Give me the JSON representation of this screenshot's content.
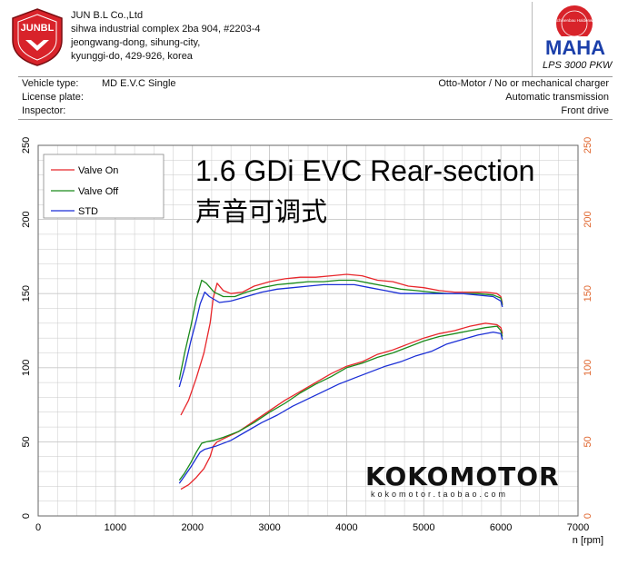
{
  "company": {
    "brand": "JUNBL",
    "name": "JUN B.L Co.,Ltd",
    "address": [
      "sihwa industrial complex 2ba 904, #2203-4",
      "jeongwang-dong, sihung-city,",
      "kyunggi-do, 429-926, korea"
    ]
  },
  "maha": {
    "seal_text": "Maschinenbau Haldenwang",
    "brand": "MAHA",
    "model": "LPS 3000 PKW"
  },
  "info": {
    "vehicle_type_label": "Vehicle type:",
    "vehicle_type_value": "MD E.V.C Single",
    "license_label": "License plate:",
    "inspector_label": "Inspector:",
    "right": [
      "Otto-Motor / No or mechanical charger",
      "Automatic transmission",
      "Front drive"
    ]
  },
  "watermark": {
    "logo": "KOKOMOTOR",
    "url": "kokomotor.taobao.com"
  },
  "colors": {
    "valve_on": "#e8262b",
    "valve_off": "#1a8a1a",
    "std": "#1b2fd6",
    "right_axis": "#e0662e",
    "grid": "#c8c8c8"
  },
  "chart_data": {
    "type": "line",
    "title": "1.6 GDi EVC Rear-section",
    "subtitle": "声音可调式",
    "xlabel": "n [rpm]",
    "xlim": [
      0,
      7000
    ],
    "ylim": [
      0,
      250
    ],
    "y2lim": [
      0,
      250
    ],
    "x_ticks": [
      0,
      1000,
      2000,
      3000,
      4000,
      5000,
      6000,
      7000
    ],
    "y_ticks": [
      0,
      50,
      100,
      150,
      200,
      250
    ],
    "legend_position": "top-left",
    "grid": true,
    "series": [
      {
        "name": "Valve On",
        "color": "#e8262b",
        "upper": [
          [
            1850,
            68
          ],
          [
            1950,
            78
          ],
          [
            2050,
            93
          ],
          [
            2150,
            110
          ],
          [
            2230,
            130
          ],
          [
            2270,
            147
          ],
          [
            2320,
            157
          ],
          [
            2400,
            152
          ],
          [
            2500,
            150
          ],
          [
            2650,
            151
          ],
          [
            2800,
            155
          ],
          [
            3000,
            158
          ],
          [
            3200,
            160
          ],
          [
            3400,
            161
          ],
          [
            3600,
            161
          ],
          [
            3800,
            162
          ],
          [
            4000,
            163
          ],
          [
            4200,
            162
          ],
          [
            4400,
            159
          ],
          [
            4600,
            158
          ],
          [
            4800,
            155
          ],
          [
            5000,
            154
          ],
          [
            5200,
            152
          ],
          [
            5400,
            151
          ],
          [
            5600,
            151
          ],
          [
            5800,
            151
          ],
          [
            5950,
            150
          ],
          [
            6000,
            148
          ],
          [
            6020,
            143
          ]
        ],
        "lower": [
          [
            1850,
            18
          ],
          [
            1950,
            21
          ],
          [
            2050,
            26
          ],
          [
            2150,
            32
          ],
          [
            2230,
            40
          ],
          [
            2270,
            47
          ],
          [
            2320,
            50
          ],
          [
            2400,
            52
          ],
          [
            2600,
            57
          ],
          [
            2800,
            64
          ],
          [
            3000,
            71
          ],
          [
            3200,
            78
          ],
          [
            3400,
            84
          ],
          [
            3600,
            90
          ],
          [
            3800,
            96
          ],
          [
            4000,
            101
          ],
          [
            4200,
            104
          ],
          [
            4400,
            109
          ],
          [
            4600,
            112
          ],
          [
            4800,
            116
          ],
          [
            5000,
            120
          ],
          [
            5200,
            123
          ],
          [
            5400,
            125
          ],
          [
            5600,
            128
          ],
          [
            5800,
            130
          ],
          [
            5950,
            129
          ],
          [
            6000,
            127
          ],
          [
            6020,
            123
          ]
        ]
      },
      {
        "name": "Valve Off",
        "color": "#1a8a1a",
        "upper": [
          [
            1830,
            92
          ],
          [
            1900,
            110
          ],
          [
            1980,
            128
          ],
          [
            2050,
            146
          ],
          [
            2120,
            159
          ],
          [
            2180,
            157
          ],
          [
            2280,
            151
          ],
          [
            2400,
            148
          ],
          [
            2550,
            148
          ],
          [
            2700,
            151
          ],
          [
            2900,
            154
          ],
          [
            3100,
            156
          ],
          [
            3300,
            157
          ],
          [
            3500,
            158
          ],
          [
            3700,
            158
          ],
          [
            3900,
            159
          ],
          [
            4100,
            159
          ],
          [
            4300,
            157
          ],
          [
            4500,
            155
          ],
          [
            4700,
            153
          ],
          [
            4900,
            152
          ],
          [
            5100,
            151
          ],
          [
            5300,
            150
          ],
          [
            5500,
            150
          ],
          [
            5700,
            150
          ],
          [
            5900,
            149
          ],
          [
            6000,
            147
          ],
          [
            6020,
            142
          ]
        ],
        "lower": [
          [
            1830,
            24
          ],
          [
            1900,
            29
          ],
          [
            1980,
            36
          ],
          [
            2050,
            43
          ],
          [
            2120,
            49
          ],
          [
            2180,
            50
          ],
          [
            2280,
            51
          ],
          [
            2400,
            53
          ],
          [
            2600,
            57
          ],
          [
            2800,
            63
          ],
          [
            3000,
            70
          ],
          [
            3200,
            76
          ],
          [
            3400,
            83
          ],
          [
            3600,
            89
          ],
          [
            3800,
            94
          ],
          [
            4000,
            100
          ],
          [
            4200,
            103
          ],
          [
            4400,
            107
          ],
          [
            4600,
            110
          ],
          [
            4800,
            114
          ],
          [
            5000,
            118
          ],
          [
            5200,
            121
          ],
          [
            5400,
            123
          ],
          [
            5600,
            125
          ],
          [
            5800,
            127
          ],
          [
            5950,
            128
          ],
          [
            6000,
            125
          ],
          [
            6020,
            121
          ]
        ]
      },
      {
        "name": "STD",
        "color": "#1b2fd6",
        "upper": [
          [
            1830,
            87
          ],
          [
            1900,
            100
          ],
          [
            1980,
            118
          ],
          [
            2050,
            132
          ],
          [
            2100,
            143
          ],
          [
            2160,
            151
          ],
          [
            2220,
            148
          ],
          [
            2350,
            144
          ],
          [
            2500,
            145
          ],
          [
            2700,
            148
          ],
          [
            2900,
            151
          ],
          [
            3100,
            153
          ],
          [
            3300,
            154
          ],
          [
            3500,
            155
          ],
          [
            3700,
            156
          ],
          [
            3900,
            156
          ],
          [
            4100,
            156
          ],
          [
            4300,
            154
          ],
          [
            4500,
            152
          ],
          [
            4700,
            150
          ],
          [
            4900,
            150
          ],
          [
            5100,
            150
          ],
          [
            5300,
            150
          ],
          [
            5500,
            150
          ],
          [
            5700,
            149
          ],
          [
            5900,
            148
          ],
          [
            6000,
            145
          ],
          [
            6020,
            141
          ]
        ],
        "lower": [
          [
            1830,
            22
          ],
          [
            1900,
            27
          ],
          [
            1980,
            33
          ],
          [
            2050,
            39
          ],
          [
            2100,
            43
          ],
          [
            2160,
            45
          ],
          [
            2300,
            47
          ],
          [
            2500,
            51
          ],
          [
            2700,
            57
          ],
          [
            2900,
            63
          ],
          [
            3100,
            68
          ],
          [
            3300,
            74
          ],
          [
            3500,
            79
          ],
          [
            3700,
            84
          ],
          [
            3900,
            89
          ],
          [
            4100,
            93
          ],
          [
            4300,
            97
          ],
          [
            4500,
            101
          ],
          [
            4700,
            104
          ],
          [
            4900,
            108
          ],
          [
            5100,
            111
          ],
          [
            5300,
            116
          ],
          [
            5500,
            119
          ],
          [
            5700,
            122
          ],
          [
            5900,
            124
          ],
          [
            6000,
            123
          ],
          [
            6020,
            119
          ]
        ]
      }
    ]
  }
}
